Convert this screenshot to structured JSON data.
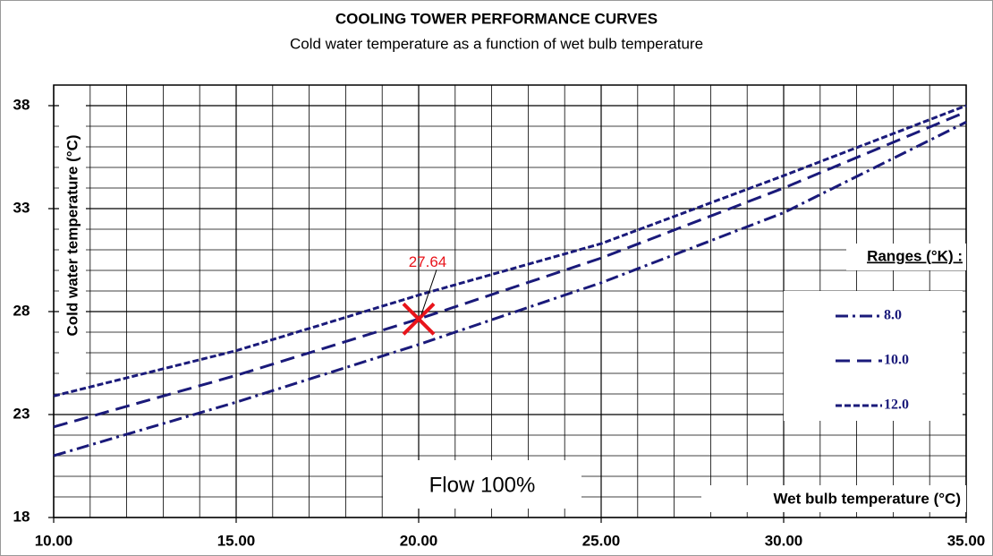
{
  "chart_data": {
    "type": "line",
    "title": "COOLING TOWER PERFORMANCE CURVES",
    "subtitle": "Cold water temperature as a function of wet bulb temperature",
    "x_label": "Wet bulb temperature (°C)",
    "y_label": "Cold water temperature (°C)",
    "legend_title": "Ranges (°K) :",
    "note": "Flow 100%",
    "x": [
      10,
      15,
      20,
      25,
      30,
      35
    ],
    "series": [
      {
        "name": "8.0",
        "color": "#1a1a7a",
        "dash": "dashdot",
        "values": [
          21.0,
          23.6,
          26.4,
          29.4,
          32.8,
          37.2
        ]
      },
      {
        "name": "10.0",
        "color": "#1a1a7a",
        "dash": "dash",
        "values": [
          22.4,
          24.9,
          27.64,
          30.6,
          34.0,
          37.7
        ]
      },
      {
        "name": "12.0",
        "color": "#1a1a7a",
        "dash": "shortdash",
        "values": [
          23.9,
          26.1,
          28.8,
          31.3,
          34.6,
          38.0
        ]
      }
    ],
    "annotation": {
      "x": 20,
      "y": 27.64,
      "color": "#e8141b"
    },
    "xlim": [
      10,
      35
    ],
    "ylim": [
      18,
      39
    ],
    "xticks": [
      {
        "value": 10,
        "label": "10.00"
      },
      {
        "value": 15,
        "label": "15.00"
      },
      {
        "value": 20,
        "label": "20.00"
      },
      {
        "value": 25,
        "label": "25.00"
      },
      {
        "value": 30,
        "label": "30.00"
      },
      {
        "value": 35,
        "label": "35.00"
      }
    ],
    "yticks": [
      18,
      23,
      28,
      33,
      38
    ],
    "grid": true,
    "minor_grid_step": 1,
    "legend": "right"
  }
}
